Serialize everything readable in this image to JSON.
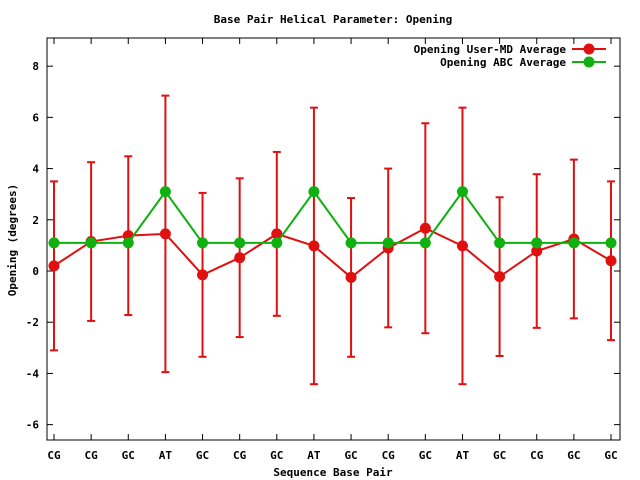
{
  "chart_data": {
    "type": "line",
    "title": "Base Pair Helical Parameter: Opening",
    "xlabel": "Sequence Base Pair",
    "ylabel": "Opening (degrees)",
    "categories": [
      "CG",
      "CG",
      "GC",
      "AT",
      "GC",
      "CG",
      "GC",
      "AT",
      "GC",
      "CG",
      "GC",
      "AT",
      "GC",
      "CG",
      "GC",
      "GC"
    ],
    "ylim": [
      -6.6,
      9.1
    ],
    "yticks": [
      -6,
      -4,
      -2,
      0,
      2,
      4,
      6,
      8
    ],
    "grid": false,
    "legend_position": "top-right",
    "series": [
      {
        "name": "Opening User-MD Average",
        "color": "#e01010",
        "values": [
          0.2,
          1.15,
          1.38,
          1.45,
          -0.15,
          0.52,
          1.45,
          0.98,
          -0.25,
          0.9,
          1.67,
          0.98,
          -0.22,
          0.78,
          1.25,
          0.4
        ],
        "error": [
          3.3,
          3.1,
          3.1,
          5.4,
          3.2,
          3.1,
          3.2,
          5.4,
          3.1,
          3.1,
          4.1,
          5.4,
          3.1,
          3.0,
          3.1,
          3.1
        ]
      },
      {
        "name": "Opening ABC Average",
        "color": "#10b010",
        "values": [
          1.1,
          1.1,
          1.1,
          3.1,
          1.1,
          1.1,
          1.1,
          3.1,
          1.1,
          1.1,
          1.1,
          3.1,
          1.1,
          1.1,
          1.1,
          1.1
        ]
      }
    ]
  }
}
